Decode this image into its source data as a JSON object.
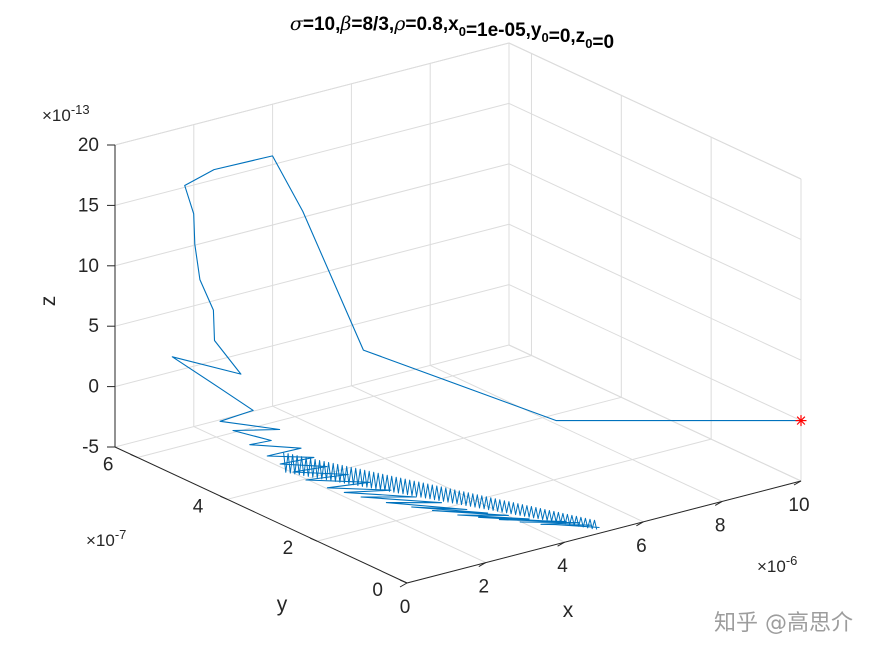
{
  "chart_data": {
    "type": "line",
    "view": "3d",
    "title_parts": [
      {
        "t": "σ",
        "style": "italic"
      },
      {
        "t": "=10,"
      },
      {
        "t": "β",
        "style": "italic"
      },
      {
        "t": "=8/3,"
      },
      {
        "t": "ρ",
        "style": "italic"
      },
      {
        "t": "=0.8,x"
      },
      {
        "t": "0",
        "style": "sub"
      },
      {
        "t": "=1e-05,y"
      },
      {
        "t": "0",
        "style": "sub"
      },
      {
        "t": "=0,z"
      },
      {
        "t": "0",
        "style": "sub"
      },
      {
        "t": "=0"
      }
    ],
    "xlabel": "x",
    "ylabel": "y",
    "zlabel": "z",
    "x_exponent": {
      "base": "×10",
      "power": "-6"
    },
    "y_exponent": {
      "base": "×10",
      "power": "-7"
    },
    "z_exponent": {
      "base": "×10",
      "power": "-13"
    },
    "x_ticks": [
      "0",
      "2",
      "4",
      "6",
      "8",
      "10"
    ],
    "y_ticks": [
      "0",
      "2",
      "4",
      "6"
    ],
    "z_ticks": [
      "-5",
      "0",
      "5",
      "10",
      "15",
      "20"
    ],
    "xlim": [
      0,
      10
    ],
    "ylim": [
      0,
      6.5
    ],
    "zlim": [
      -5,
      20
    ],
    "grid": true,
    "series": [
      {
        "color": "#0072BD",
        "points_xyz": [
          [
            10,
            0,
            0
          ],
          [
            5.5,
            1.5,
            1.2
          ],
          [
            2.2,
            2.9,
            7.4
          ],
          [
            2.6,
            4.6,
            15.6
          ],
          [
            2.4,
            5.1,
            19.5
          ],
          [
            1.6,
            5.7,
            18.0
          ],
          [
            1.2,
            6.0,
            16.5
          ],
          [
            1.2,
            5.8,
            14.5
          ],
          [
            1.0,
            5.6,
            12.5
          ],
          [
            0.9,
            5.4,
            10.0
          ],
          [
            0.9,
            5.1,
            8.0
          ],
          [
            0.7,
            4.9,
            6.0
          ],
          [
            0.8,
            4.4,
            4.0
          ],
          [
            0.2,
            5.4,
            4.2
          ],
          [
            0.6,
            4.7,
            2.5
          ],
          [
            1.0,
            4.3,
            1.0
          ],
          [
            0.5,
            4.6,
            0.0
          ],
          [
            1.1,
            3.8,
            0.2
          ],
          [
            0.6,
            4.4,
            -0.5
          ],
          [
            1.0,
            3.9,
            -0.8
          ],
          [
            0.8,
            4.2,
            -1.5
          ],
          [
            1.3,
            3.5,
            -1.0
          ],
          [
            0.9,
            3.9,
            -2.0
          ],
          [
            1.4,
            3.3,
            -1.5
          ],
          [
            1.0,
            3.7,
            -2.4
          ],
          [
            1.5,
            3.1,
            -2.0
          ],
          [
            1.1,
            3.5,
            -2.8
          ],
          [
            1.7,
            2.8,
            -2.3
          ],
          [
            1.2,
            3.3,
            -3.2
          ],
          [
            1.9,
            2.5,
            -2.6
          ],
          [
            1.4,
            3.0,
            -3.5
          ],
          [
            2.1,
            2.2,
            -2.9
          ],
          [
            1.6,
            2.8,
            -3.7
          ],
          [
            2.4,
            1.9,
            -3.2
          ],
          [
            1.8,
            2.6,
            -3.9
          ],
          [
            2.7,
            1.6,
            -3.4
          ],
          [
            2.1,
            2.3,
            -4.1
          ],
          [
            3.0,
            1.3,
            -3.7
          ],
          [
            2.4,
            2.0,
            -4.2
          ],
          [
            3.3,
            1.1,
            -3.9
          ],
          [
            2.7,
            1.8,
            -4.4
          ],
          [
            3.6,
            0.9,
            -4.0
          ],
          [
            3.0,
            1.5,
            -4.5
          ],
          [
            3.9,
            0.7,
            -4.2
          ],
          [
            3.3,
            1.3,
            -4.6
          ],
          [
            4.2,
            0.5,
            -4.3
          ],
          [
            3.6,
            1.1,
            -4.7
          ],
          [
            4.5,
            0.4,
            -4.4
          ],
          [
            3.9,
            0.9,
            -4.8
          ],
          [
            4.7,
            0.3,
            -4.5
          ],
          [
            4.2,
            0.7,
            -4.9
          ],
          [
            4.9,
            0.2,
            -4.7
          ],
          [
            4.4,
            0.6,
            -4.9
          ],
          [
            5.0,
            0.1,
            -4.8
          ]
        ]
      }
    ],
    "marker": {
      "x": 10,
      "y": 0,
      "z": 0,
      "symbol": "*",
      "color": "#FF0000"
    }
  },
  "watermark": "知乎 @高思介"
}
